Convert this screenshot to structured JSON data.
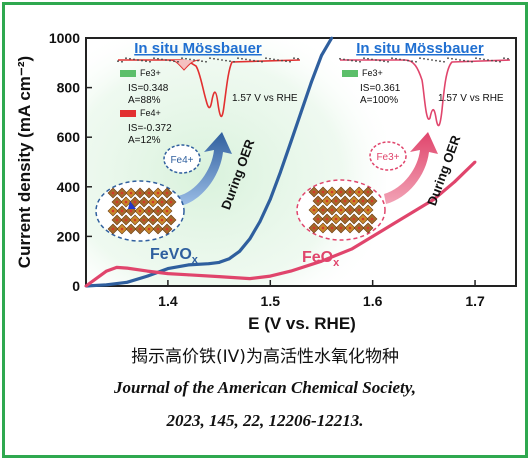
{
  "chart_data": {
    "type": "line",
    "xlabel": "E (V vs. RHE)",
    "ylabel": "Current density (mA cm⁻²)",
    "xlim": [
      1.32,
      1.74
    ],
    "ylim": [
      0,
      1000
    ],
    "xticks": [
      "1.4",
      "1.5",
      "1.6",
      "1.7"
    ],
    "yticks": [
      "0",
      "200",
      "400",
      "600",
      "800",
      "1000"
    ],
    "series": [
      {
        "name": "FeVOx",
        "color": "#2f5f9e",
        "x": [
          1.32,
          1.34,
          1.36,
          1.38,
          1.4,
          1.42,
          1.44,
          1.45,
          1.46,
          1.47,
          1.48,
          1.49,
          1.5,
          1.51,
          1.52,
          1.53,
          1.54,
          1.55,
          1.56
        ],
        "y": [
          0,
          5,
          15,
          40,
          70,
          85,
          90,
          95,
          110,
          140,
          190,
          260,
          350,
          460,
          580,
          700,
          820,
          930,
          1000
        ]
      },
      {
        "name": "FeOx",
        "color": "#e0456c",
        "x": [
          1.32,
          1.34,
          1.35,
          1.36,
          1.38,
          1.4,
          1.42,
          1.45,
          1.48,
          1.5,
          1.52,
          1.55,
          1.58,
          1.6,
          1.62,
          1.64,
          1.66,
          1.68,
          1.7
        ],
        "y": [
          0,
          60,
          75,
          72,
          60,
          50,
          45,
          38,
          30,
          40,
          60,
          100,
          150,
          200,
          250,
          300,
          350,
          420,
          500
        ]
      }
    ],
    "labels": {
      "feVOx": "FeVOx",
      "feOx": "FeOx",
      "duringOER_left": "During OER",
      "duringOER_right": "During OER",
      "fe4_badge": "Fe4+",
      "fe3_badge": "Fe3+"
    },
    "insets": [
      {
        "title": "In situ Mössbauer",
        "potential": "1.57 V vs RHE",
        "legend": [
          {
            "name": "Fe3+",
            "IS": "IS=0.348",
            "A": "A=88%",
            "color": "#5cbf6a"
          },
          {
            "name": "Fe4+",
            "IS": "IS=-0.372",
            "A": "A=12%",
            "color": "#e23030"
          }
        ]
      },
      {
        "title": "In situ Mössbauer",
        "potential": "1.57 V vs RHE",
        "legend": [
          {
            "name": "Fe3+",
            "IS": "IS=0.361",
            "A": "A=100%",
            "color": "#5cbf6a"
          }
        ]
      }
    ]
  },
  "caption": {
    "cn": "揭示高价铁(IV)为高活性水氧化物种",
    "journal": "Journal of the American Chemical Society,",
    "cite": "2023, 145, 22, 12206-12213."
  },
  "colors": {
    "frame": "#2fa84f",
    "bg_glow": "#d9f2dc",
    "fevox": "#2f5f9e",
    "feox": "#e0456c",
    "title_blue": "#1f6fd1"
  }
}
